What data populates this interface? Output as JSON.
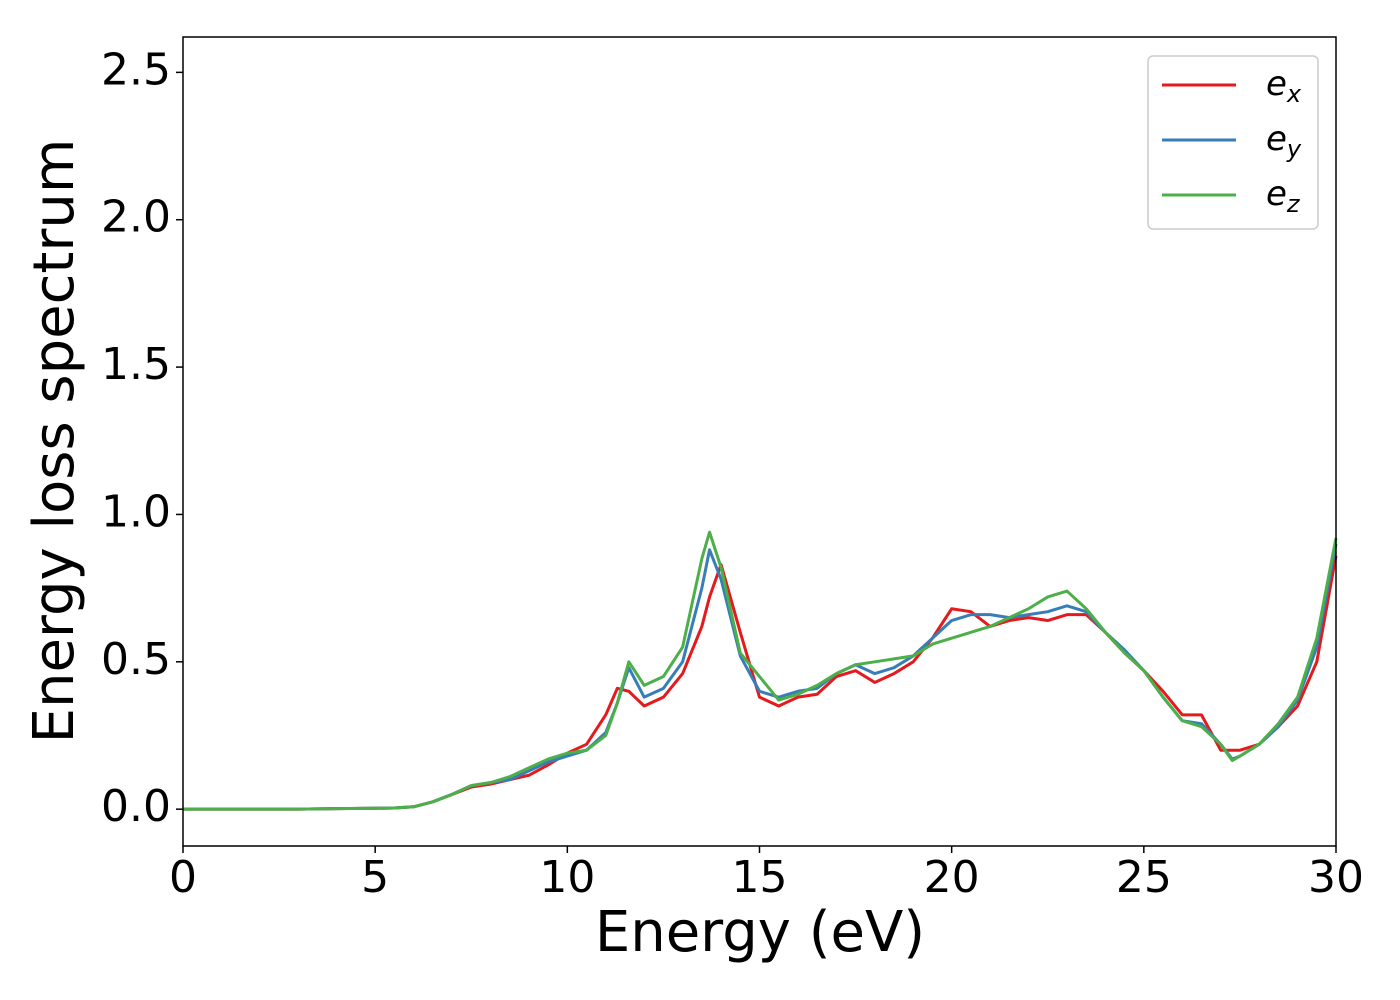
{
  "chart_data": {
    "type": "line",
    "x_label": "Energy (eV)",
    "y_label": "Energy loss spectrum",
    "x": [
      0,
      1,
      2,
      3,
      4,
      5,
      5.5,
      6,
      6.5,
      7,
      7.5,
      8,
      8.5,
      9,
      9.5,
      10,
      10.5,
      11,
      11.3,
      11.6,
      12,
      12.5,
      13,
      13.5,
      13.7,
      14,
      14.5,
      15,
      15.5,
      16,
      16.5,
      17,
      17.5,
      18,
      18.5,
      19,
      19.5,
      20,
      20.5,
      21,
      21.5,
      22,
      22.5,
      23,
      23.5,
      24,
      24.5,
      25,
      25.5,
      26,
      26.5,
      27,
      27.3,
      27.5,
      28,
      28.5,
      29,
      29.5,
      30
    ],
    "series": [
      {
        "name": "e_x",
        "color": "#e41a1c",
        "values": [
          0,
          0,
          0,
          0,
          0.002,
          0.003,
          0.004,
          0.008,
          0.025,
          0.05,
          0.075,
          0.085,
          0.1,
          0.115,
          0.15,
          0.19,
          0.22,
          0.32,
          0.41,
          0.4,
          0.35,
          0.38,
          0.46,
          0.62,
          0.72,
          0.83,
          0.6,
          0.38,
          0.35,
          0.38,
          0.39,
          0.45,
          0.47,
          0.43,
          0.46,
          0.5,
          0.58,
          0.68,
          0.67,
          0.62,
          0.64,
          0.65,
          0.64,
          0.66,
          0.66,
          0.6,
          0.53,
          0.47,
          0.4,
          0.32,
          0.32,
          0.2,
          0.2,
          0.2,
          0.22,
          0.28,
          0.35,
          0.5,
          0.86
        ]
      },
      {
        "name": "e_y",
        "color": "#377eb8",
        "values": [
          0,
          0,
          0,
          0,
          0.002,
          0.003,
          0.004,
          0.008,
          0.025,
          0.05,
          0.08,
          0.09,
          0.1,
          0.13,
          0.16,
          0.18,
          0.2,
          0.26,
          0.36,
          0.48,
          0.38,
          0.41,
          0.5,
          0.75,
          0.88,
          0.78,
          0.52,
          0.4,
          0.38,
          0.4,
          0.41,
          0.46,
          0.49,
          0.46,
          0.48,
          0.52,
          0.58,
          0.64,
          0.66,
          0.66,
          0.65,
          0.66,
          0.67,
          0.69,
          0.67,
          0.6,
          0.54,
          0.47,
          0.38,
          0.3,
          0.29,
          0.22,
          0.17,
          0.18,
          0.22,
          0.28,
          0.37,
          0.55,
          0.9
        ]
      },
      {
        "name": "e_z",
        "color": "#4daf4a",
        "values": [
          0,
          0,
          0,
          0,
          0.002,
          0.003,
          0.004,
          0.008,
          0.025,
          0.05,
          0.08,
          0.09,
          0.11,
          0.14,
          0.17,
          0.19,
          0.2,
          0.25,
          0.36,
          0.5,
          0.42,
          0.45,
          0.55,
          0.85,
          0.94,
          0.82,
          0.53,
          0.45,
          0.37,
          0.39,
          0.42,
          0.46,
          0.49,
          0.5,
          0.51,
          0.52,
          0.56,
          0.58,
          0.6,
          0.62,
          0.65,
          0.68,
          0.72,
          0.74,
          0.68,
          0.6,
          0.53,
          0.47,
          0.38,
          0.3,
          0.28,
          0.22,
          0.165,
          0.18,
          0.22,
          0.29,
          0.38,
          0.58,
          0.92
        ]
      }
    ],
    "xlim": [
      0,
      30
    ],
    "xticks": [
      0,
      5,
      10,
      15,
      20,
      25,
      30
    ],
    "ylim": [
      -0.125,
      2.62
    ],
    "yticks": [
      {
        "value": 0,
        "label": "0.0"
      },
      0.5,
      {
        "value": 1,
        "label": "1.0"
      },
      1.5,
      {
        "value": 2,
        "label": "2.0"
      },
      2.5
    ],
    "grid": false,
    "legend": "upper right"
  }
}
